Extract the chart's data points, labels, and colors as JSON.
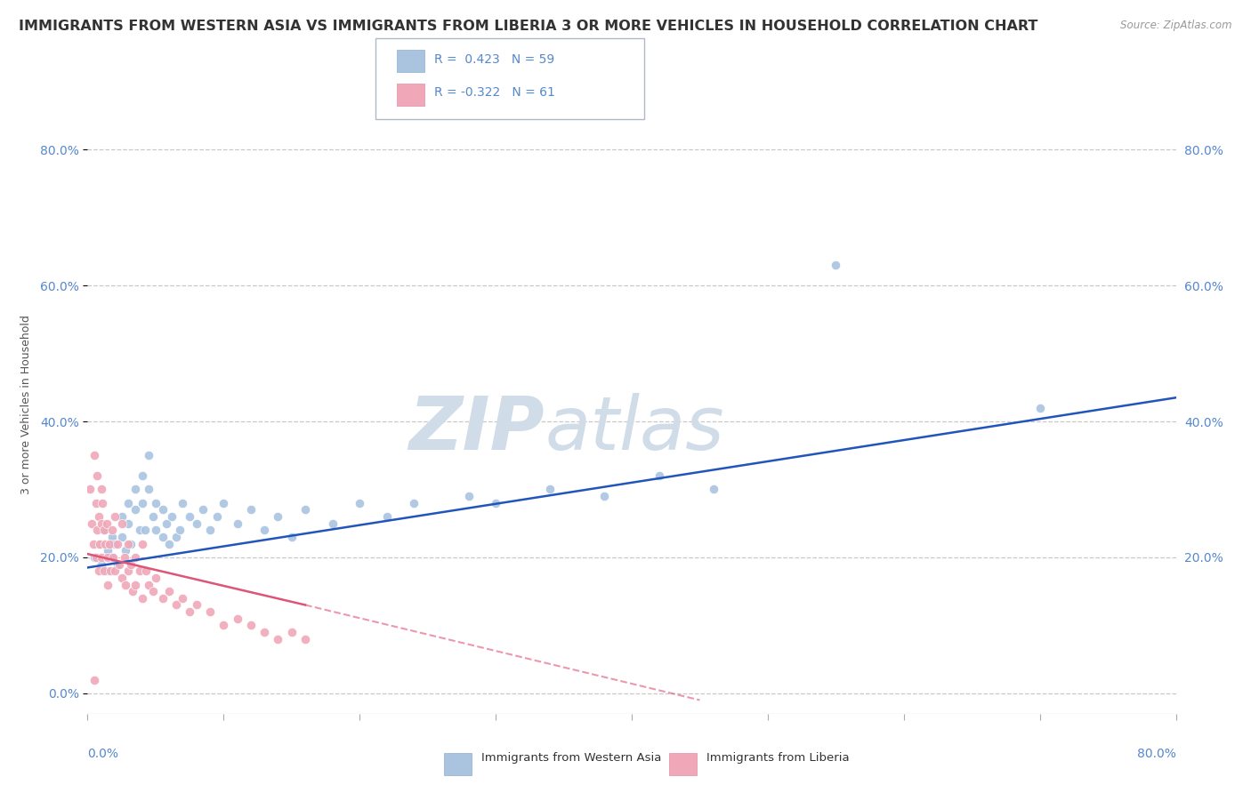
{
  "title": "IMMIGRANTS FROM WESTERN ASIA VS IMMIGRANTS FROM LIBERIA 3 OR MORE VEHICLES IN HOUSEHOLD CORRELATION CHART",
  "source": "Source: ZipAtlas.com",
  "ylabel": "3 or more Vehicles in Household",
  "r_blue": 0.423,
  "n_blue": 59,
  "r_pink": -0.322,
  "n_pink": 61,
  "xlim": [
    0,
    0.8
  ],
  "ylim": [
    -0.03,
    0.88
  ],
  "blue_color": "#aac4e0",
  "pink_color": "#f0a8b8",
  "blue_line_color": "#2255bb",
  "pink_line_color": "#dd5577",
  "grid_color": "#c8c8c8",
  "background_color": "#ffffff",
  "title_fontsize": 11.5,
  "axis_label_fontsize": 9,
  "tick_fontsize": 10,
  "blue_scatter_x": [
    0.005,
    0.008,
    0.01,
    0.012,
    0.015,
    0.015,
    0.018,
    0.018,
    0.02,
    0.022,
    0.025,
    0.025,
    0.028,
    0.03,
    0.03,
    0.032,
    0.035,
    0.035,
    0.038,
    0.04,
    0.04,
    0.042,
    0.045,
    0.045,
    0.048,
    0.05,
    0.05,
    0.055,
    0.055,
    0.058,
    0.06,
    0.062,
    0.065,
    0.068,
    0.07,
    0.075,
    0.08,
    0.085,
    0.09,
    0.095,
    0.1,
    0.11,
    0.12,
    0.13,
    0.14,
    0.15,
    0.16,
    0.18,
    0.2,
    0.22,
    0.24,
    0.28,
    0.3,
    0.34,
    0.38,
    0.42,
    0.46,
    0.55,
    0.7
  ],
  "blue_scatter_y": [
    0.2,
    0.22,
    0.19,
    0.24,
    0.21,
    0.18,
    0.23,
    0.2,
    0.22,
    0.19,
    0.26,
    0.23,
    0.21,
    0.28,
    0.25,
    0.22,
    0.3,
    0.27,
    0.24,
    0.32,
    0.28,
    0.24,
    0.35,
    0.3,
    0.26,
    0.28,
    0.24,
    0.27,
    0.23,
    0.25,
    0.22,
    0.26,
    0.23,
    0.24,
    0.28,
    0.26,
    0.25,
    0.27,
    0.24,
    0.26,
    0.28,
    0.25,
    0.27,
    0.24,
    0.26,
    0.23,
    0.27,
    0.25,
    0.28,
    0.26,
    0.28,
    0.29,
    0.28,
    0.3,
    0.29,
    0.32,
    0.3,
    0.63,
    0.42
  ],
  "pink_scatter_x": [
    0.002,
    0.003,
    0.004,
    0.005,
    0.006,
    0.006,
    0.007,
    0.007,
    0.008,
    0.008,
    0.009,
    0.01,
    0.01,
    0.01,
    0.011,
    0.012,
    0.012,
    0.013,
    0.014,
    0.015,
    0.015,
    0.016,
    0.017,
    0.018,
    0.019,
    0.02,
    0.02,
    0.022,
    0.023,
    0.025,
    0.025,
    0.027,
    0.028,
    0.03,
    0.03,
    0.032,
    0.033,
    0.035,
    0.035,
    0.038,
    0.04,
    0.04,
    0.043,
    0.045,
    0.048,
    0.05,
    0.055,
    0.06,
    0.065,
    0.07,
    0.075,
    0.08,
    0.09,
    0.1,
    0.11,
    0.12,
    0.13,
    0.14,
    0.15,
    0.16,
    0.005
  ],
  "pink_scatter_y": [
    0.3,
    0.25,
    0.22,
    0.35,
    0.28,
    0.2,
    0.32,
    0.24,
    0.26,
    0.18,
    0.22,
    0.3,
    0.25,
    0.2,
    0.28,
    0.24,
    0.18,
    0.22,
    0.25,
    0.2,
    0.16,
    0.22,
    0.18,
    0.24,
    0.2,
    0.26,
    0.18,
    0.22,
    0.19,
    0.25,
    0.17,
    0.2,
    0.16,
    0.22,
    0.18,
    0.19,
    0.15,
    0.2,
    0.16,
    0.18,
    0.22,
    0.14,
    0.18,
    0.16,
    0.15,
    0.17,
    0.14,
    0.15,
    0.13,
    0.14,
    0.12,
    0.13,
    0.12,
    0.1,
    0.11,
    0.1,
    0.09,
    0.08,
    0.09,
    0.08,
    0.02
  ],
  "ytick_values": [
    0.0,
    0.2,
    0.4,
    0.6,
    0.8
  ],
  "ytick_labels": [
    "0.0%",
    "20.0%",
    "40.0%",
    "60.0%",
    "80.0%"
  ],
  "right_ytick_values": [
    0.2,
    0.4,
    0.6,
    0.8
  ],
  "right_ytick_labels": [
    "20.0%",
    "40.0%",
    "60.0%",
    "80.0%"
  ]
}
